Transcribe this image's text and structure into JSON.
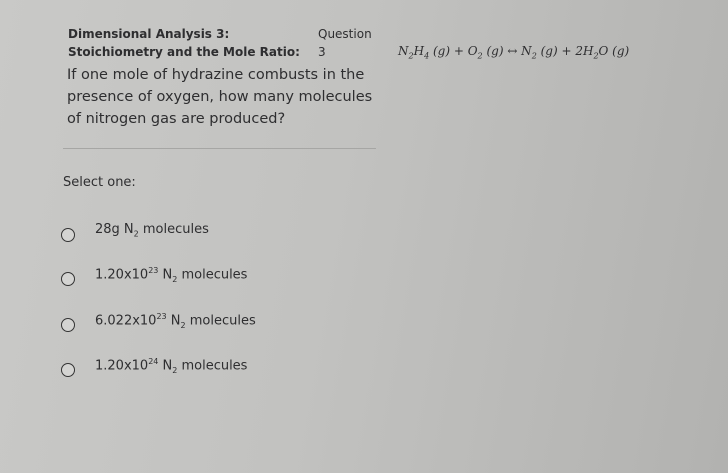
{
  "header": {
    "title_line1": "Dimensional Analysis 3:",
    "title_line2": "Stoichiometry and the Mole Ratio:",
    "question_label": "Question",
    "question_number": "3"
  },
  "equation": [
    "N",
    "2",
    "H",
    "4",
    " (g) + O",
    "2",
    " (g) ↔ N",
    "2",
    " (g) + 2H",
    "2",
    "O (g)"
  ],
  "question": [
    "If one mole of hydrazine combusts in the",
    "presence of oxygen, how many molecules",
    "of nitrogen gas are produced?"
  ],
  "prompt": "Select one:",
  "options": [
    [
      "28g N",
      "2",
      " molecules"
    ],
    [
      "1.20x10",
      "23",
      " N",
      "2",
      " molecules"
    ],
    [
      "6.022x10",
      "23",
      " N",
      "2",
      " molecules"
    ],
    [
      "1.20x10",
      "24",
      " N",
      "2",
      " molecules"
    ]
  ]
}
